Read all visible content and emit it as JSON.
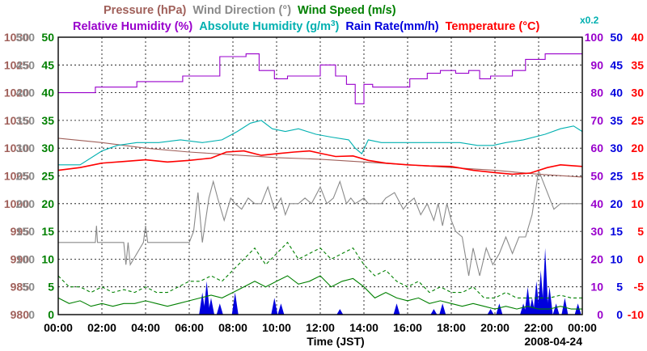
{
  "chart_data": {
    "type": "line",
    "date": "2008-04-24",
    "xlabel": "Time (JST)",
    "x_ticks": [
      "00:00",
      "02:00",
      "04:00",
      "06:00",
      "08:00",
      "10:00",
      "12:00",
      "14:00",
      "16:00",
      "18:00",
      "20:00",
      "22:00",
      "00:00"
    ],
    "multiplier_note": "x0.2",
    "legend": [
      {
        "key": "pressure",
        "label": "Pressure (hPa)",
        "color": "#a0605a"
      },
      {
        "key": "wind_dir",
        "label": "Wind Direction (°)",
        "color": "#8a8a8a"
      },
      {
        "key": "wind_speed",
        "label": "Wind Speed (m/s)",
        "color": "#008000"
      },
      {
        "key": "rh",
        "label": "Relative Humidity (%)",
        "color": "#9900cc"
      },
      {
        "key": "ah_pre",
        "label": "Absolute Humidity (g/m",
        "color": "#00b0b0"
      },
      {
        "key": "ah_sup",
        "label": "3",
        "color": "#00b0b0"
      },
      {
        "key": "ah_post",
        "label": ")",
        "color": "#00b0b0"
      },
      {
        "key": "rain",
        "label": "Rain Rate(mm/h)",
        "color": "#0000dd"
      },
      {
        "key": "temp",
        "label": "Temperature (°C)",
        "color": "#ff0000"
      }
    ],
    "axes": {
      "pressure": {
        "color": "#a0605a",
        "ticks": [
          "1030",
          "1025",
          "1020",
          "1015",
          "1010",
          "1005",
          "1000",
          "995",
          "990",
          "985",
          "980"
        ],
        "ylim": [
          980,
          1030
        ]
      },
      "wind_dir": {
        "color": "#8a8a8a",
        "ticks": [
          "500",
          "450",
          "400",
          "350",
          "300",
          "250",
          "200",
          "150",
          "100",
          "50",
          "0"
        ],
        "ylim": [
          0,
          500
        ]
      },
      "wind_speed": {
        "color": "#008000",
        "ticks": [
          "50",
          "45",
          "40",
          "35",
          "30",
          "25",
          "20",
          "15",
          "10",
          "5",
          "0"
        ],
        "ylim": [
          0,
          50
        ]
      },
      "rh": {
        "color": "#9900cc",
        "ticks": [
          "100",
          "90",
          "80",
          "70",
          "60",
          "50",
          "40",
          "30",
          "20",
          "10",
          "0"
        ],
        "ylim": [
          0,
          100
        ]
      },
      "rain": {
        "color": "#0000dd",
        "ticks": [
          "50",
          "45",
          "40",
          "35",
          "30",
          "25",
          "20",
          "15",
          "10",
          "5",
          "0"
        ],
        "ylim": [
          0,
          50
        ]
      },
      "temp": {
        "color": "#ff0000",
        "ticks": [
          "40",
          "35",
          "30",
          "25",
          "20",
          "15",
          "10",
          "5",
          "0",
          "-5",
          "-10"
        ],
        "ylim": [
          -10,
          40
        ]
      }
    },
    "series": [
      {
        "key": "rh",
        "name": "Relative Humidity",
        "color": "#9900cc",
        "unit": "%",
        "x": [
          0,
          0.9,
          1.7,
          2.7,
          3.6,
          4.3,
          5.7,
          6.5,
          7.4,
          8.6,
          9.2,
          9.9,
          10.5,
          11.0,
          11.5,
          12.0,
          12.7,
          13.2,
          13.6,
          14.0,
          14.4,
          15.0,
          15.7,
          16.1,
          16.9,
          17.5,
          18.2,
          18.8,
          19.3,
          19.8,
          20.2,
          20.8,
          21.4,
          22.3,
          23.0,
          24
        ],
        "y": [
          80,
          80,
          82,
          82,
          84,
          84,
          86,
          86,
          93,
          94,
          88,
          85,
          86,
          86,
          86,
          90,
          86,
          83,
          76,
          83,
          82,
          82,
          82,
          85,
          87,
          88,
          87,
          88,
          85,
          86,
          86,
          88,
          92,
          94,
          94,
          94
        ]
      },
      {
        "key": "ah",
        "name": "Absolute Humidity",
        "color": "#00b0b0",
        "unit": "g/m3 x0.2",
        "x": [
          0,
          1.0,
          2.0,
          2.7,
          3.6,
          4.6,
          5.6,
          6.6,
          7.5,
          8.2,
          8.8,
          9.3,
          9.8,
          10.4,
          11.0,
          11.8,
          12.5,
          13.3,
          13.6,
          13.9,
          14.2,
          14.8,
          15.8,
          16.6,
          17.6,
          18.4,
          19.2,
          19.9,
          20.5,
          21.3,
          22.3,
          23.0,
          23.6,
          24
        ],
        "y": [
          54,
          54,
          59,
          61,
          62,
          62,
          63,
          62,
          63,
          66,
          69,
          70,
          67,
          66,
          67,
          65,
          64,
          63,
          60,
          58,
          63,
          62,
          62,
          62,
          62,
          62,
          61,
          61,
          62,
          63,
          65,
          67,
          68,
          66
        ]
      },
      {
        "key": "temp",
        "name": "Temperature",
        "color": "#ff0000",
        "unit": "°C",
        "x": [
          0,
          1.0,
          2.0,
          3.0,
          4.0,
          5.0,
          6.0,
          7.0,
          7.7,
          8.5,
          9.3,
          10.0,
          10.8,
          11.5,
          12.1,
          12.7,
          13.5,
          14.2,
          15.0,
          16.0,
          17.0,
          18.0,
          19.0,
          20.0,
          20.8,
          21.6,
          22.4,
          23.0,
          24
        ],
        "y": [
          16,
          16.5,
          17.3,
          17.6,
          17.9,
          17.5,
          17.8,
          18.2,
          19.3,
          19.5,
          18.7,
          19.0,
          19.3,
          19.5,
          19.0,
          18.5,
          18.6,
          17.8,
          17.3,
          17.0,
          16.8,
          16.7,
          16.0,
          15.6,
          15.3,
          15.5,
          16.5,
          17.0,
          16.7
        ]
      },
      {
        "key": "pressure",
        "name": "Pressure",
        "color": "#a0605a",
        "unit": "hPa",
        "x": [
          0,
          2,
          4,
          6,
          8,
          10,
          12,
          14,
          16,
          18,
          20,
          22,
          24
        ],
        "y": [
          1011.8,
          1011.0,
          1010.0,
          1009.3,
          1008.8,
          1008.3,
          1008.0,
          1007.5,
          1007.0,
          1006.5,
          1006.0,
          1005.3,
          1004.8
        ]
      },
      {
        "key": "wind_dir",
        "name": "Wind Direction",
        "color": "#8a8a8a",
        "unit": "°",
        "x": [
          0,
          1.7,
          1.75,
          1.8,
          3.0,
          3.1,
          3.2,
          3.3,
          3.9,
          4.0,
          4.1,
          6.0,
          6.2,
          6.4,
          6.6,
          6.9,
          7.1,
          7.3,
          7.6,
          7.9,
          8.1,
          8.4,
          8.7,
          9.0,
          9.3,
          9.6,
          9.9,
          10.2,
          10.4,
          10.6,
          11.0,
          11.3,
          11.6,
          12.0,
          12.3,
          12.6,
          12.9,
          13.2,
          13.4,
          13.6,
          14.0,
          14.2,
          14.5,
          14.8,
          15.0,
          15.4,
          15.8,
          16.0,
          16.3,
          16.6,
          16.9,
          17.2,
          17.4,
          17.6,
          17.8,
          18.0,
          18.2,
          18.5,
          18.8,
          19.0,
          19.3,
          19.6,
          19.9,
          20.2,
          20.5,
          20.8,
          21.1,
          21.4,
          21.7,
          22.0,
          22.4,
          22.7,
          23.0,
          23.4,
          23.7,
          24
        ],
        "y": [
          130,
          130,
          160,
          130,
          130,
          90,
          130,
          90,
          130,
          160,
          130,
          130,
          150,
          220,
          130,
          210,
          240,
          210,
          170,
          210,
          200,
          190,
          210,
          200,
          200,
          230,
          190,
          210,
          180,
          200,
          200,
          210,
          200,
          230,
          200,
          210,
          240,
          200,
          210,
          200,
          210,
          200,
          200,
          200,
          210,
          220,
          190,
          200,
          210,
          180,
          200,
          170,
          200,
          160,
          200,
          170,
          150,
          140,
          70,
          120,
          70,
          120,
          90,
          110,
          140,
          110,
          140,
          140,
          180,
          260,
          220,
          190,
          200,
          200,
          200,
          200
        ]
      },
      {
        "key": "wind_speed",
        "name": "Wind Speed",
        "color": "#008000",
        "unit": "m/s",
        "x": [
          0,
          0.5,
          1.0,
          1.5,
          2.0,
          2.5,
          3.0,
          3.5,
          4.0,
          4.5,
          5.0,
          5.5,
          6.0,
          6.5,
          7.0,
          7.5,
          8.0,
          8.5,
          9.0,
          9.5,
          10.0,
          10.5,
          11.0,
          11.5,
          12.0,
          12.5,
          13.0,
          13.5,
          14.0,
          14.5,
          15.0,
          15.5,
          16.0,
          16.5,
          17.0,
          17.5,
          18.0,
          18.5,
          19.0,
          19.5,
          20.0,
          20.5,
          21.0,
          21.5,
          22.0,
          22.5,
          23.0,
          23.5,
          24
        ],
        "y": [
          3,
          2,
          2.5,
          1.5,
          2,
          1.5,
          2,
          2,
          2.5,
          2,
          1.5,
          2,
          2.5,
          3,
          3.5,
          3,
          4,
          5,
          6,
          5,
          6,
          7,
          5.5,
          6,
          7,
          5,
          6,
          6.5,
          5,
          3,
          4,
          3,
          2.5,
          3,
          2,
          2.5,
          2,
          1.5,
          2,
          1.5,
          1,
          1.5,
          1,
          1.5,
          1,
          1,
          1.5,
          1,
          1
        ]
      },
      {
        "key": "gust",
        "name": "Wind Speed (gust)",
        "color": "#008000",
        "unit": "m/s",
        "x": [
          0,
          0.5,
          1.0,
          1.5,
          2.0,
          2.5,
          3.0,
          3.5,
          4.0,
          4.5,
          5.0,
          5.5,
          6.0,
          6.5,
          7.0,
          7.5,
          8.0,
          8.5,
          9.0,
          9.5,
          10.0,
          10.5,
          11.0,
          11.5,
          12.0,
          12.5,
          13.0,
          13.5,
          14.0,
          14.5,
          15.0,
          15.5,
          16.0,
          16.5,
          17.0,
          17.5,
          18.0,
          18.5,
          19.0,
          19.5,
          20.0,
          20.5,
          21.0,
          21.5,
          22.0,
          22.5,
          23.0,
          23.5,
          24
        ],
        "y": [
          7,
          5,
          5,
          4,
          5,
          4,
          4.5,
          4,
          5,
          4,
          4,
          5,
          6,
          6,
          7,
          6,
          8,
          10,
          12,
          9,
          11,
          13,
          10,
          11,
          12,
          10,
          11,
          12,
          9,
          7,
          8,
          6,
          5,
          6,
          4,
          5,
          4,
          4,
          5,
          3,
          3,
          4,
          3,
          3,
          3,
          3,
          3.5,
          3,
          3
        ]
      },
      {
        "key": "rain",
        "name": "Rain Rate",
        "color": "#0000dd",
        "unit": "mm/h",
        "x": [
          6.6,
          6.8,
          7.0,
          7.4,
          8.1,
          9.9,
          10.2,
          12.9,
          15.5,
          17.2,
          17.6,
          19.8,
          20.2,
          21.3,
          21.5,
          21.7,
          21.9,
          22.1,
          22.3,
          22.5,
          22.8,
          23.2,
          23.8
        ],
        "y": [
          4,
          6,
          3,
          2,
          4,
          3,
          2,
          1,
          2,
          1,
          2,
          1,
          2,
          2,
          5,
          3,
          6,
          8,
          12,
          5,
          2,
          3,
          2
        ]
      }
    ]
  }
}
